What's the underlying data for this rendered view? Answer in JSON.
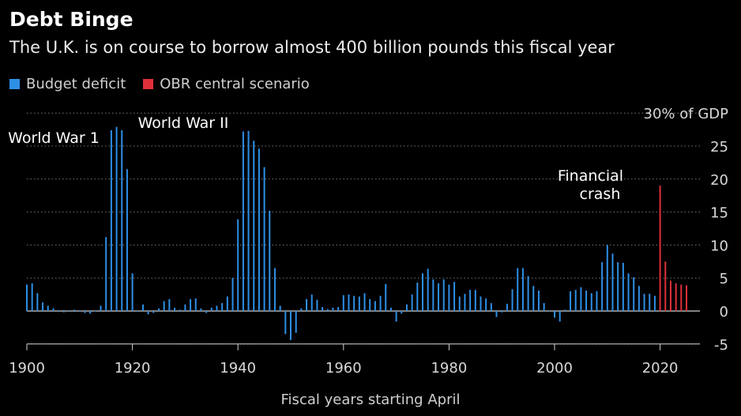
{
  "title": "Debt Binge",
  "subtitle": "The U.K. is on course to borrow almost 400 billion pounds this fiscal year",
  "legend": [
    {
      "label": "Budget deficit",
      "color": "#2e8fe6"
    },
    {
      "label": "OBR central scenario",
      "color": "#e0303a"
    }
  ],
  "x_axis_label": "Fiscal years starting April",
  "chart_data": {
    "type": "bar",
    "xlabel": "Fiscal years starting April",
    "ylabel": "",
    "y_unit_label": "30% of GDP",
    "ylim": [
      -5,
      30
    ],
    "xlim": [
      1900,
      2026
    ],
    "y_ticks": [
      -5,
      0,
      5,
      10,
      15,
      20,
      25,
      30
    ],
    "x_ticks": [
      1900,
      1920,
      1940,
      1960,
      1980,
      2000,
      2020
    ],
    "grid": "horizontal dotted",
    "annotations": [
      {
        "text": "World War 1",
        "x": 1915,
        "y": 26
      },
      {
        "text": "World War II",
        "x": 1941,
        "y": 28.5
      },
      {
        "text": "Financial crash",
        "x": 2008,
        "y": 20
      }
    ],
    "series": [
      {
        "name": "Budget deficit",
        "color": "#2e8fe6",
        "x": [
          1900,
          1901,
          1902,
          1903,
          1904,
          1905,
          1906,
          1907,
          1908,
          1909,
          1910,
          1911,
          1912,
          1913,
          1914,
          1915,
          1916,
          1917,
          1918,
          1919,
          1920,
          1921,
          1922,
          1923,
          1924,
          1925,
          1926,
          1927,
          1928,
          1929,
          1930,
          1931,
          1932,
          1933,
          1934,
          1935,
          1936,
          1937,
          1938,
          1939,
          1940,
          1941,
          1942,
          1943,
          1944,
          1945,
          1946,
          1947,
          1948,
          1949,
          1950,
          1951,
          1952,
          1953,
          1954,
          1955,
          1956,
          1957,
          1958,
          1959,
          1960,
          1961,
          1962,
          1963,
          1964,
          1965,
          1966,
          1967,
          1968,
          1969,
          1970,
          1971,
          1972,
          1973,
          1974,
          1975,
          1976,
          1977,
          1978,
          1979,
          1980,
          1981,
          1982,
          1983,
          1984,
          1985,
          1986,
          1987,
          1988,
          1989,
          1990,
          1991,
          1992,
          1993,
          1994,
          1995,
          1996,
          1997,
          1998,
          1999,
          2000,
          2001,
          2002,
          2003,
          2004,
          2005,
          2006,
          2007,
          2008,
          2009,
          2010,
          2011,
          2012,
          2013,
          2014,
          2015,
          2016,
          2017,
          2018,
          2019
        ],
        "values": [
          4.0,
          4.2,
          2.7,
          1.3,
          0.8,
          0.4,
          0.1,
          -0.2,
          0.1,
          0.2,
          0.1,
          -0.3,
          -0.4,
          0.0,
          0.8,
          11.2,
          27.4,
          27.9,
          27.4,
          21.5,
          5.7,
          -0.1,
          1.0,
          -0.5,
          -0.3,
          0.4,
          1.5,
          1.8,
          0.5,
          0.2,
          1.0,
          1.8,
          1.9,
          0.4,
          -0.3,
          0.5,
          0.8,
          1.2,
          2.2,
          5.0,
          13.9,
          27.2,
          27.3,
          25.8,
          24.6,
          21.8,
          15.2,
          6.5,
          0.8,
          -3.5,
          -4.4,
          -3.3,
          0.4,
          1.8,
          2.5,
          1.7,
          0.6,
          0.3,
          0.5,
          0.6,
          2.4,
          2.5,
          2.3,
          2.2,
          2.7,
          1.8,
          1.5,
          2.3,
          4.1,
          0.5,
          -1.6,
          -0.4,
          1.0,
          2.5,
          4.3,
          5.7,
          6.4,
          4.8,
          4.2,
          4.8,
          4.0,
          4.4,
          2.2,
          2.6,
          3.2,
          3.2,
          2.2,
          1.9,
          1.2,
          -0.9,
          -0.2,
          1.1,
          3.3,
          6.5,
          6.5,
          5.3,
          3.8,
          3.1,
          1.2,
          -0.1,
          -1.0,
          -1.6,
          0.2,
          3.0,
          3.2,
          3.6,
          3.1,
          2.7,
          3.0,
          7.4,
          10.0,
          8.7,
          7.4,
          7.3,
          5.7,
          5.1,
          3.8,
          2.6,
          2.6,
          2.3
        ]
      },
      {
        "name": "OBR central scenario",
        "color": "#e0303a",
        "x": [
          2020,
          2021,
          2022,
          2023,
          2024,
          2025
        ],
        "values": [
          19.0,
          7.5,
          4.6,
          4.2,
          4.0,
          3.9
        ]
      }
    ]
  }
}
